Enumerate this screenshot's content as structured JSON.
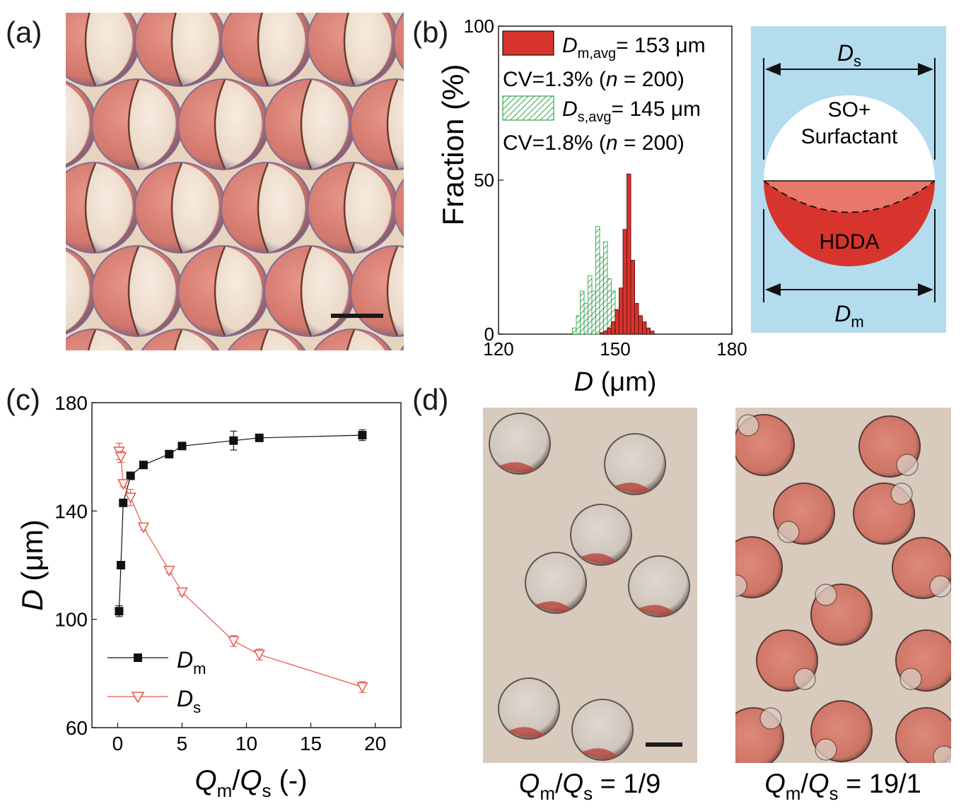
{
  "panels": {
    "a": "(a)",
    "b": "(b)",
    "c": "(c)",
    "d": "(d)"
  },
  "colors": {
    "hdda_red": "#d6342c",
    "dark_red": "#8b1a1a",
    "green": "#2ea84a",
    "schematic_bg": "#b3dcef",
    "series_m": "#111111",
    "series_s": "#e8584a",
    "micro_bg_a": "#e8d3bd",
    "micro_bg_d": "#d8cabd"
  },
  "schematic": {
    "ds_symbol": "D",
    "ds_sub": "s",
    "dm_symbol": "D",
    "dm_sub": "m",
    "top_phase_line1": "SO+",
    "top_phase_line2": "Surfactant",
    "bottom_phase": "HDDA"
  },
  "panel_d": {
    "left_caption": {
      "q1": "Q",
      "sub1": "m",
      "slash": "/",
      "q2": "Q",
      "sub2": "s",
      "value": " = 1/9"
    },
    "right_caption": {
      "q1": "Q",
      "sub1": "m",
      "slash": "/",
      "q2": "Q",
      "sub2": "s",
      "value": " = 19/1"
    }
  },
  "chart_data": [
    {
      "id": "b",
      "type": "bar",
      "title": "",
      "xlabel_symbol": "D",
      "xlabel_unit": " (μm)",
      "ylabel": "Fraction (%)",
      "xlim": [
        120,
        180
      ],
      "ylim": [
        0,
        100
      ],
      "xticks": [
        "120",
        "150",
        "180"
      ],
      "yticks": [
        "0",
        "50",
        "100"
      ],
      "legend": [
        {
          "symbol": "D",
          "sub": "m,avg",
          "text": "= 153 μm",
          "cv_text": "CV=1.3% (",
          "n_sym": "n",
          "n_text": " = 200)",
          "fill": "solid-red"
        },
        {
          "symbol": "D",
          "sub": "s,avg",
          "text": "= 145 μm",
          "cv_text": "CV=1.8% (",
          "n_sym": "n",
          "n_text": " = 200)",
          "fill": "hatched-green"
        }
      ],
      "bin_width": 1,
      "series": [
        {
          "name": "Dm",
          "bin_left": [
            146,
            147,
            148,
            149,
            150,
            151,
            152,
            153,
            154,
            155,
            156,
            157,
            158,
            159
          ],
          "values": [
            0.5,
            1,
            2,
            4,
            8,
            15,
            34,
            52,
            24,
            10,
            6,
            4,
            2,
            1
          ]
        },
        {
          "name": "Ds",
          "bin_left": [
            139,
            140,
            141,
            142,
            143,
            144,
            145,
            146,
            147,
            148,
            149,
            150,
            151
          ],
          "values": [
            2,
            6,
            14,
            10,
            19,
            14,
            35,
            25,
            30,
            18,
            14,
            3,
            2
          ]
        }
      ]
    },
    {
      "id": "c",
      "type": "line",
      "title": "",
      "xlabel": {
        "q1": "Q",
        "sub1": "m",
        "slash": "/",
        "q2": "Q",
        "sub2": "s",
        "tail": " (-)"
      },
      "ylabel_symbol": "D",
      "ylabel_unit": " (μm)",
      "xlim": [
        -2,
        22
      ],
      "ylim": [
        60,
        180
      ],
      "xticks": [
        "0",
        "5",
        "10",
        "15",
        "20"
      ],
      "yticks": [
        "60",
        "100",
        "140",
        "180"
      ],
      "legend": [
        {
          "symbol": "D",
          "sub": "m"
        },
        {
          "symbol": "D",
          "sub": "s"
        }
      ],
      "series": [
        {
          "name": "Dm",
          "marker": "filled-square",
          "x": [
            0.11,
            0.25,
            0.43,
            1,
            2,
            4,
            5,
            9,
            11,
            19
          ],
          "y": [
            103,
            120,
            143,
            153,
            157,
            161,
            164,
            166,
            167,
            168
          ],
          "err": [
            2,
            1,
            1,
            1,
            1,
            1,
            1,
            3.5,
            1,
            2
          ]
        },
        {
          "name": "Ds",
          "marker": "open-triangle-down",
          "x": [
            0.11,
            0.25,
            0.43,
            1,
            2,
            4,
            5,
            9,
            11,
            19
          ],
          "y": [
            162,
            160,
            150,
            145,
            134,
            118,
            110,
            92,
            87,
            75
          ],
          "err": [
            3,
            2,
            1,
            3,
            1,
            1,
            1,
            2,
            2,
            2
          ]
        }
      ]
    }
  ]
}
